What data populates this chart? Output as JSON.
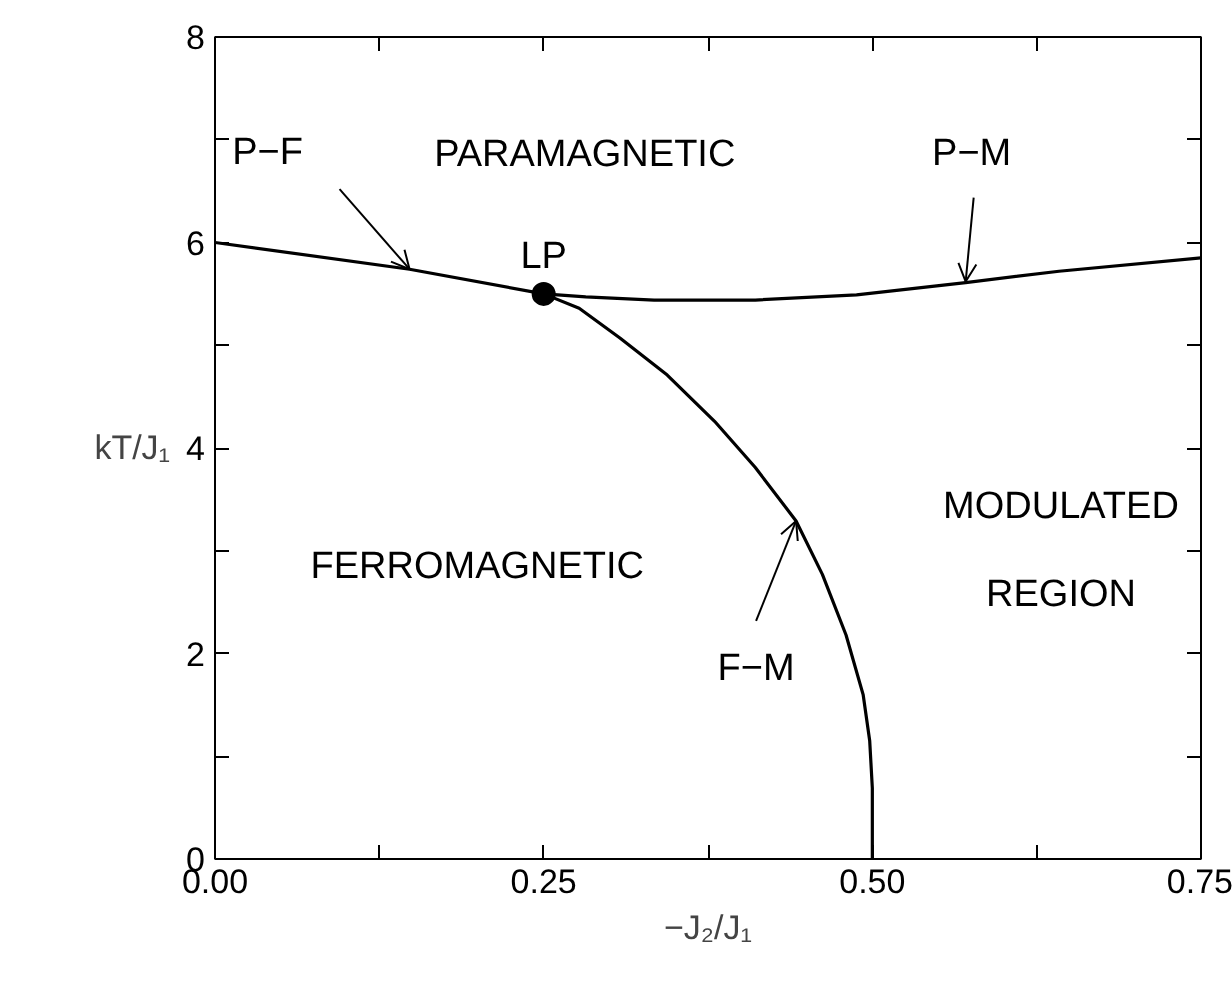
{
  "chart_data": {
    "type": "line",
    "xlabel": "−J₂/J₁",
    "ylabel": "kT/J₁",
    "xlim": [
      0,
      0.75
    ],
    "ylim": [
      0,
      8
    ],
    "xticks": [
      {
        "value": 0,
        "label": "0.00"
      },
      {
        "value": 0.125,
        "label": null
      },
      {
        "value": 0.25,
        "label": "0.25"
      },
      {
        "value": 0.375,
        "label": null
      },
      {
        "value": 0.5,
        "label": "0.50"
      },
      {
        "value": 0.625,
        "label": null
      },
      {
        "value": 0.75,
        "label": "0.75"
      }
    ],
    "yticks": [
      0,
      {
        "value": 1,
        "label": null
      },
      2,
      {
        "value": 3,
        "label": null
      },
      4,
      {
        "value": 5,
        "label": null
      },
      6,
      {
        "value": 7,
        "label": null
      },
      8
    ],
    "series": [
      {
        "color": "#000000",
        "x": [
          0,
          0.148,
          0.25
        ],
        "values": [
          6.0,
          5.74,
          5.5
        ]
      },
      {
        "color": "#000000",
        "x": [
          0.25,
          0.282,
          0.334,
          0.411,
          0.488,
          0.571,
          0.642,
          0.75
        ],
        "values": [
          5.5,
          5.47,
          5.44,
          5.44,
          5.49,
          5.61,
          5.72,
          5.85
        ]
      },
      {
        "color": "#000000",
        "x": [
          0.25,
          0.277,
          0.308,
          0.344,
          0.38,
          0.411,
          0.442,
          0.462,
          0.48,
          0.493,
          0.498,
          0.5,
          0.5
        ],
        "values": [
          5.5,
          5.36,
          5.07,
          4.71,
          4.26,
          3.81,
          3.29,
          2.77,
          2.18,
          1.6,
          1.15,
          0.69,
          0
        ]
      },
      {
        "type": "scatter",
        "name": "LP",
        "color": "#000000",
        "marker": "circle",
        "x": [
          0.25
        ],
        "values": [
          5.5
        ]
      }
    ],
    "annotations": [
      "PARAMAGNETIC",
      {
        "text": "P−F",
        "x": 0.148,
        "y": 5.74
      },
      {
        "text": "P−M",
        "x": 0.571,
        "y": 5.62
      },
      "FERROMAGNETIC",
      "MODULATED",
      "REGION",
      {
        "text": "F−M",
        "x": 0.442,
        "y": 3.29
      }
    ]
  }
}
